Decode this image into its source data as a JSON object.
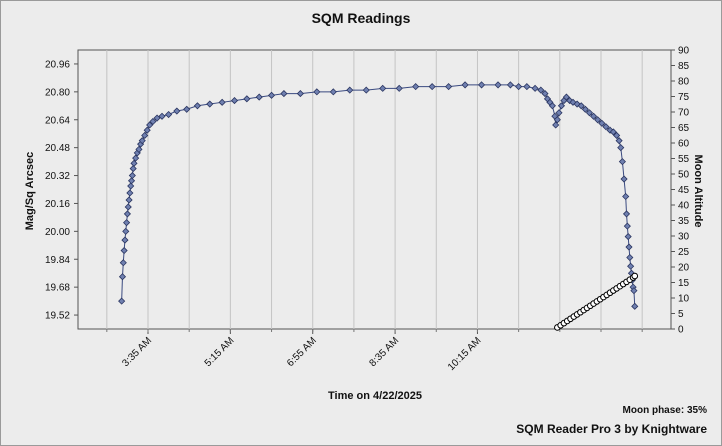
{
  "chart_data": {
    "type": "line",
    "title": "SQM Readings",
    "xlabel": "Time on 4/22/2025",
    "ylabel": "Mag/Sq Arcsec",
    "y2label": "Moon Altitude",
    "x_tick_labels": [
      "3:35 AM",
      "5:15 AM",
      "6:55 AM",
      "8:35 AM",
      "10:15 AM"
    ],
    "x_range_minutes": [
      130,
      850
    ],
    "ylim": [
      19.44,
      21.04
    ],
    "y_ticks": [
      "19.52",
      "19.68",
      "19.84",
      "20.00",
      "20.16",
      "20.32",
      "20.48",
      "20.64",
      "20.80",
      "20.96"
    ],
    "y2lim": [
      0,
      90
    ],
    "y2_ticks": [
      "0",
      "5",
      "10",
      "15",
      "20",
      "25",
      "30",
      "35",
      "40",
      "45",
      "50",
      "55",
      "60",
      "65",
      "70",
      "75",
      "80",
      "85",
      "90"
    ],
    "grid": true,
    "series": [
      {
        "role": "sqm",
        "axis": "left",
        "color": "#7080b0",
        "points": [
          [
            183,
            19.6
          ],
          [
            184,
            19.74
          ],
          [
            185,
            19.82
          ],
          [
            186,
            19.89
          ],
          [
            187,
            19.95
          ],
          [
            188,
            20.0
          ],
          [
            189,
            20.05
          ],
          [
            190,
            20.1
          ],
          [
            191,
            20.14
          ],
          [
            192,
            20.18
          ],
          [
            193,
            20.22
          ],
          [
            194,
            20.26
          ],
          [
            195,
            20.29
          ],
          [
            196,
            20.32
          ],
          [
            197,
            20.36
          ],
          [
            198,
            20.39
          ],
          [
            200,
            20.42
          ],
          [
            202,
            20.45
          ],
          [
            204,
            20.47
          ],
          [
            206,
            20.5
          ],
          [
            208,
            20.52
          ],
          [
            211,
            20.55
          ],
          [
            214,
            20.58
          ],
          [
            217,
            20.61
          ],
          [
            221,
            20.63
          ],
          [
            226,
            20.65
          ],
          [
            232,
            20.66
          ],
          [
            240,
            20.67
          ],
          [
            250,
            20.69
          ],
          [
            262,
            20.7
          ],
          [
            275,
            20.72
          ],
          [
            290,
            20.73
          ],
          [
            305,
            20.74
          ],
          [
            320,
            20.75
          ],
          [
            335,
            20.76
          ],
          [
            350,
            20.77
          ],
          [
            365,
            20.78
          ],
          [
            380,
            20.79
          ],
          [
            400,
            20.79
          ],
          [
            420,
            20.8
          ],
          [
            440,
            20.8
          ],
          [
            460,
            20.81
          ],
          [
            480,
            20.81
          ],
          [
            500,
            20.82
          ],
          [
            520,
            20.82
          ],
          [
            540,
            20.83
          ],
          [
            560,
            20.83
          ],
          [
            580,
            20.83
          ],
          [
            600,
            20.84
          ],
          [
            620,
            20.84
          ],
          [
            640,
            20.84
          ],
          [
            655,
            20.84
          ],
          [
            665,
            20.83
          ],
          [
            675,
            20.83
          ],
          [
            685,
            20.82
          ],
          [
            692,
            20.81
          ],
          [
            697,
            20.79
          ],
          [
            700,
            20.76
          ],
          [
            703,
            20.74
          ],
          [
            706,
            20.72
          ],
          [
            709,
            20.66
          ],
          [
            710,
            20.61
          ],
          [
            712,
            20.64
          ],
          [
            714,
            20.68
          ],
          [
            717,
            20.72
          ],
          [
            720,
            20.75
          ],
          [
            723,
            20.77
          ],
          [
            727,
            20.75
          ],
          [
            731,
            20.74
          ],
          [
            736,
            20.73
          ],
          [
            741,
            20.72
          ],
          [
            746,
            20.7
          ],
          [
            751,
            20.68
          ],
          [
            756,
            20.66
          ],
          [
            761,
            20.64
          ],
          [
            766,
            20.62
          ],
          [
            771,
            20.6
          ],
          [
            776,
            20.58
          ],
          [
            780,
            20.57
          ],
          [
            784,
            20.55
          ],
          [
            787,
            20.52
          ],
          [
            789,
            20.48
          ],
          [
            791,
            20.4
          ],
          [
            793,
            20.3
          ],
          [
            795,
            20.2
          ],
          [
            796,
            20.1
          ],
          [
            797,
            20.03
          ],
          [
            798,
            19.97
          ],
          [
            799,
            19.91
          ],
          [
            800,
            19.85
          ],
          [
            801,
            19.8
          ],
          [
            802,
            19.76
          ],
          [
            803,
            19.72
          ],
          [
            804,
            19.68
          ],
          [
            805,
            19.66
          ],
          [
            806,
            19.57
          ]
        ]
      },
      {
        "role": "moon",
        "axis": "right",
        "color": "#000000",
        "points": [
          [
            712,
            0.5
          ],
          [
            716,
            1.2
          ],
          [
            720,
            1.9
          ],
          [
            724,
            2.6
          ],
          [
            728,
            3.3
          ],
          [
            732,
            4.0
          ],
          [
            736,
            4.7
          ],
          [
            740,
            5.4
          ],
          [
            744,
            6.1
          ],
          [
            748,
            6.8
          ],
          [
            752,
            7.5
          ],
          [
            756,
            8.2
          ],
          [
            760,
            8.9
          ],
          [
            764,
            9.6
          ],
          [
            768,
            10.3
          ],
          [
            772,
            11.0
          ],
          [
            776,
            11.7
          ],
          [
            780,
            12.4
          ],
          [
            784,
            13.1
          ],
          [
            788,
            13.8
          ],
          [
            792,
            14.5
          ],
          [
            796,
            15.2
          ],
          [
            800,
            15.9
          ],
          [
            804,
            16.6
          ],
          [
            806,
            17.1
          ]
        ]
      }
    ]
  },
  "footer": {
    "moon_phase": "Moon phase: 35%",
    "brand": "SQM Reader Pro 3 by Knightware"
  }
}
